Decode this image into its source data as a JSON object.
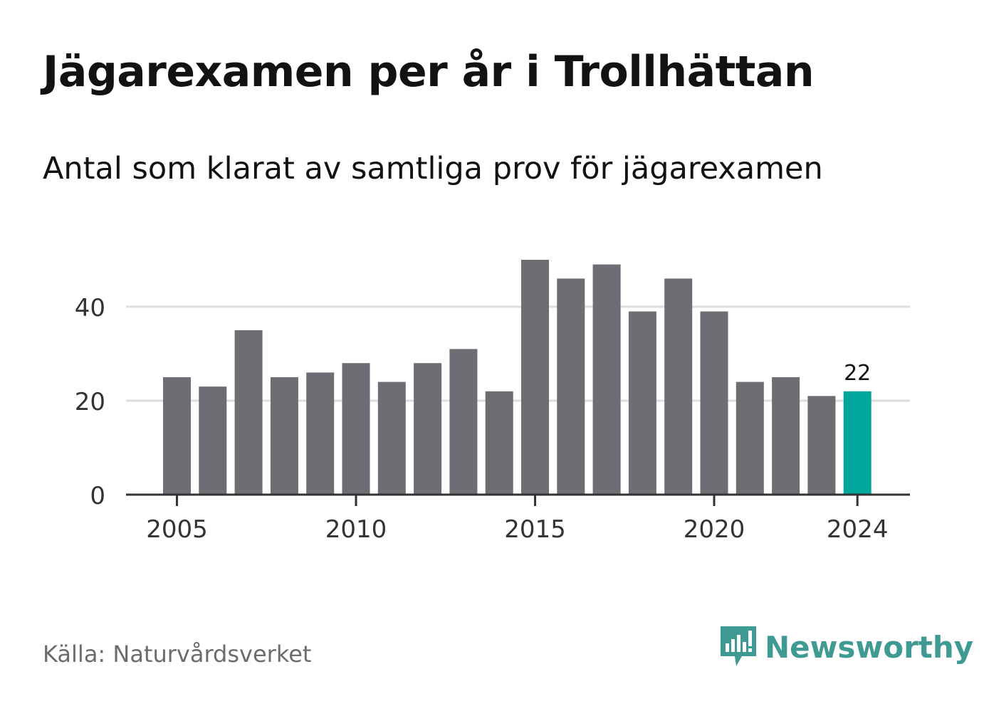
{
  "title": "Jägarexamen per år i Trollhättan",
  "subtitle": "Antal som klarat av samtliga prov för jägarexamen",
  "source": "Källa: Naturvårdsverket",
  "brand": {
    "name": "Newsworthy",
    "logo_icon": "newsworthy-bar-chart-icon",
    "color": "#3f9a93"
  },
  "colors": {
    "bar": "#6e6d73",
    "highlight": "#00a59b",
    "grid": "#dddddd",
    "axis": "#333333",
    "text": "#333333"
  },
  "chart_data": {
    "type": "bar",
    "title": "Jägarexamen per år i Trollhättan",
    "subtitle": "Antal som klarat av samtliga prov för jägarexamen",
    "categories": [
      2005,
      2006,
      2007,
      2008,
      2009,
      2010,
      2011,
      2012,
      2013,
      2014,
      2015,
      2016,
      2017,
      2018,
      2019,
      2020,
      2021,
      2022,
      2023,
      2024
    ],
    "values": [
      25,
      23,
      35,
      25,
      26,
      28,
      24,
      28,
      31,
      22,
      50,
      46,
      49,
      39,
      46,
      39,
      24,
      25,
      21,
      22
    ],
    "highlight_index": 19,
    "highlight_label": "22",
    "x_ticks": [
      2005,
      2010,
      2015,
      2020,
      2024
    ],
    "y_ticks": [
      0,
      20,
      40
    ],
    "ylim": [
      0,
      50
    ],
    "grid": true,
    "xlabel": "",
    "ylabel": ""
  }
}
